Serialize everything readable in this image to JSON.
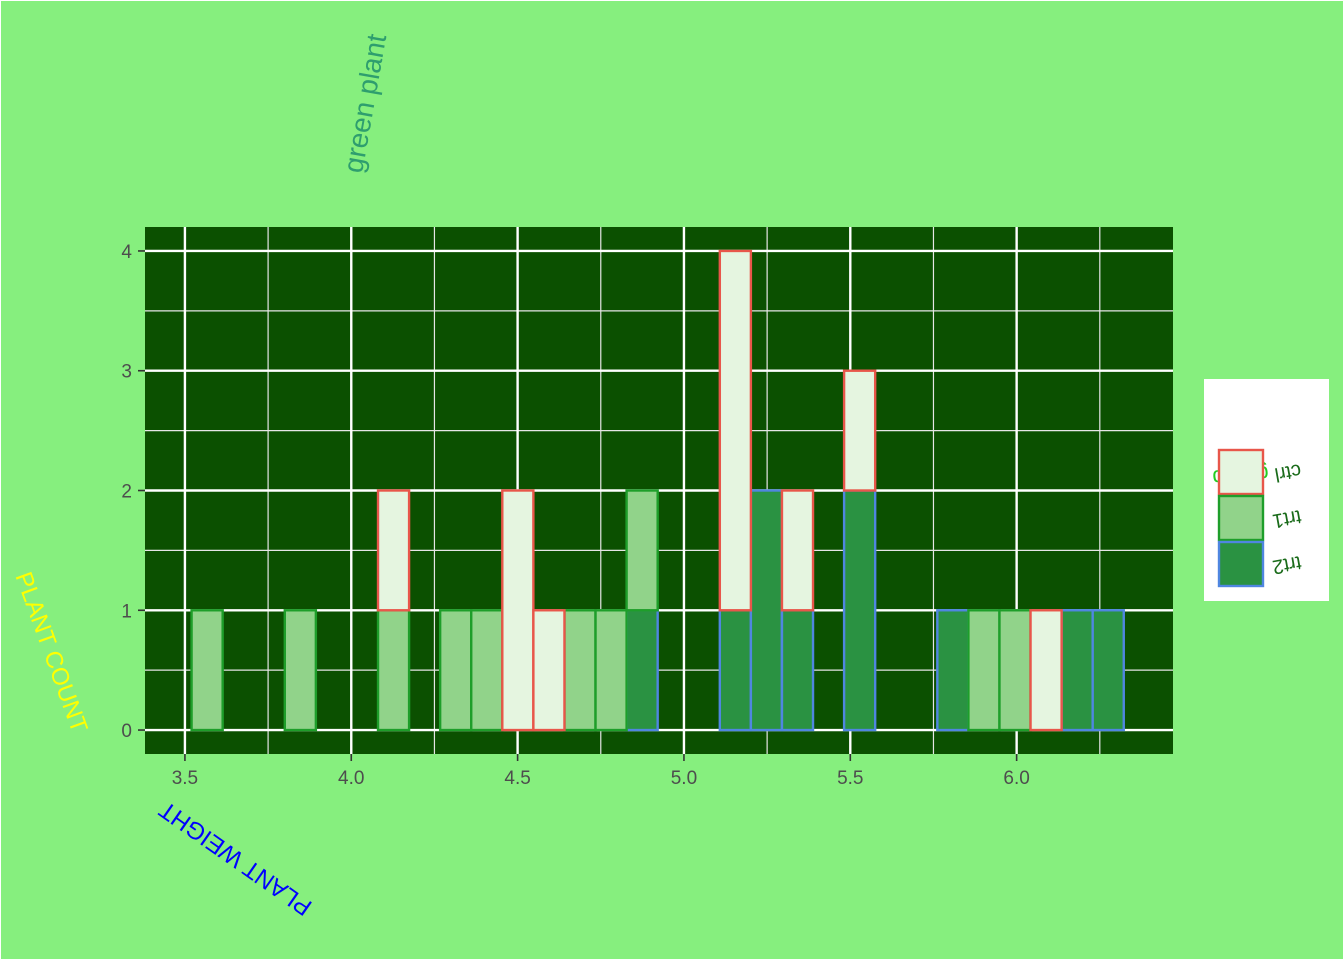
{
  "chart_data": {
    "type": "bar",
    "subtype": "stacked-histogram",
    "title": "green plant",
    "xlabel": "PLANT WEIGHT",
    "ylabel": "PLANT COUNT",
    "xlim": [
      3.38,
      6.47
    ],
    "ylim": [
      -0.2,
      4.2
    ],
    "x_ticks": [
      3.5,
      4.0,
      4.5,
      5.0,
      5.5,
      6.0
    ],
    "x_tick_labels": [
      "3.5",
      "4.0",
      "4.5",
      "5.0",
      "5.5",
      "6.0"
    ],
    "y_ticks": [
      0,
      1,
      2,
      3,
      4
    ],
    "y_tick_labels": [
      "0",
      "1",
      "2",
      "3",
      "4"
    ],
    "grid": true,
    "legend": {
      "title": "group",
      "position": "right",
      "entries": [
        "ctrl",
        "trt1",
        "trt2"
      ]
    },
    "bins": {
      "start": 3.52,
      "width": 0.0934,
      "count": 30
    },
    "series": [
      {
        "name": "trt2",
        "counts": [
          0,
          0,
          0,
          0,
          0,
          0,
          0,
          0,
          0,
          0,
          0,
          0,
          0,
          0,
          1,
          0,
          0,
          1,
          2,
          1,
          0,
          2,
          0,
          0,
          1,
          0,
          0,
          0,
          1,
          1
        ]
      },
      {
        "name": "trt1",
        "counts": [
          1,
          0,
          0,
          1,
          0,
          0,
          1,
          0,
          1,
          1,
          0,
          0,
          1,
          1,
          1,
          0,
          0,
          0,
          0,
          0,
          0,
          0,
          0,
          0,
          0,
          1,
          1,
          0,
          0,
          0
        ]
      },
      {
        "name": "ctrl",
        "counts": [
          0,
          0,
          0,
          0,
          0,
          0,
          1,
          0,
          0,
          0,
          2,
          1,
          0,
          0,
          0,
          0,
          0,
          3,
          0,
          1,
          0,
          1,
          0,
          0,
          0,
          0,
          0,
          1,
          0,
          0
        ]
      }
    ],
    "colors": {
      "page_background": "#86ef7e",
      "panel_background": "#0b5000",
      "grid_major": "#ffffff",
      "grid_minor": "#e6e6e6",
      "tick_text": "#4d4d4d",
      "title": "#2e9e6e",
      "xlabel": "#0000ff",
      "ylabel": "#ffff00",
      "legend_title": "#22cc22",
      "legend_text": "#1a6b1a",
      "legend_background": "#ffffff",
      "ctrl_fill": "#e5f5e0",
      "ctrl_outline": "#e8564a",
      "trt1_fill": "#91d38a",
      "trt1_outline": "#1e9e2a",
      "trt2_fill": "#2a9242",
      "trt2_outline": "#4f86e0"
    }
  }
}
